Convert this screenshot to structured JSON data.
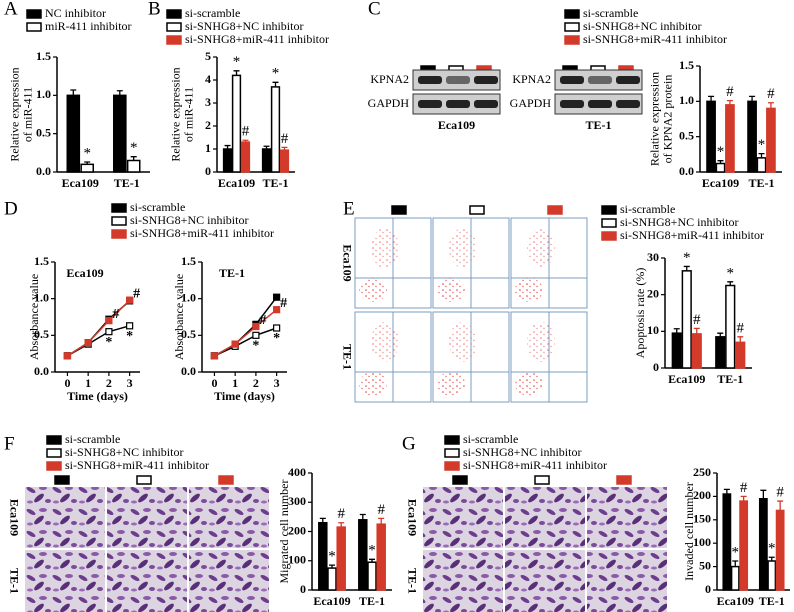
{
  "chart_data": [
    {
      "type": "bar",
      "panel": "A",
      "ylabel": [
        "Relative expression",
        "of miR-411"
      ],
      "categories": [
        "Eca109",
        "TE-1"
      ],
      "series": [
        {
          "name": "NC inhibitor",
          "color": "#000000",
          "values": [
            1.0,
            1.0
          ],
          "errors": [
            0.07,
            0.06
          ]
        },
        {
          "name": "miR-411 inhibitor",
          "color": "#ffffff",
          "values": [
            0.1,
            0.15
          ],
          "errors": [
            0.03,
            0.05
          ],
          "annotations": [
            "*",
            "*"
          ]
        }
      ],
      "ylim": [
        0,
        1.5
      ],
      "yticks": [
        {
          "value": 0,
          "label": "0.0"
        },
        0.5,
        {
          "value": 1,
          "label": "1.0"
        },
        1.5
      ]
    },
    {
      "type": "bar",
      "panel": "B",
      "ylabel": [
        "Relative expression",
        "of miR-411"
      ],
      "categories": [
        "Eca109",
        "TE-1"
      ],
      "series": [
        {
          "name": "si-scramble",
          "color": "#000000",
          "values": [
            1.0,
            1.0
          ],
          "errors": [
            0.15,
            0.12
          ]
        },
        {
          "name": "si-SNHG8+NC inhibitor",
          "color": "#ffffff",
          "values": [
            4.2,
            3.7
          ],
          "errors": [
            0.2,
            0.2
          ],
          "annotations": [
            "*",
            "*"
          ]
        },
        {
          "name": "si-SNHG8+miR-411 inhibitor",
          "color": "#d43a2a",
          "values": [
            1.3,
            0.95
          ],
          "errors": [
            0.08,
            0.12
          ],
          "annotations": [
            "#",
            "#"
          ]
        }
      ],
      "ylim": [
        0,
        5
      ],
      "yticks": [
        0,
        1,
        2,
        3,
        4,
        5
      ]
    },
    {
      "type": "bar",
      "panel": "C",
      "ylabel": [
        "Relative expression",
        "of KPNA2 protein"
      ],
      "categories": [
        "Eca109",
        "TE-1"
      ],
      "image_labels": {
        "rows": [
          "KPNA2",
          "GAPDH"
        ],
        "groups": [
          "Eca109",
          "TE-1"
        ]
      },
      "series": [
        {
          "name": "si-scramble",
          "color": "#000000",
          "values": [
            1.0,
            1.0
          ],
          "errors": [
            0.07,
            0.07
          ]
        },
        {
          "name": "si-SNHG8+NC inhibitor",
          "color": "#ffffff",
          "values": [
            0.12,
            0.2
          ],
          "errors": [
            0.04,
            0.06
          ],
          "annotations": [
            "*",
            "*"
          ]
        },
        {
          "name": "si-SNHG8+miR-411 inhibitor",
          "color": "#d43a2a",
          "values": [
            0.95,
            0.9
          ],
          "errors": [
            0.06,
            0.08
          ],
          "annotations": [
            "#",
            "#"
          ]
        }
      ],
      "ylim": [
        0,
        1.5
      ],
      "yticks": [
        {
          "value": 0,
          "label": "0.0"
        },
        0.5,
        {
          "value": 1,
          "label": "1.0"
        },
        1.5
      ]
    },
    {
      "type": "line",
      "panel": "D",
      "subtitle": "Eca109",
      "xlabel": "Time (days)",
      "ylabel": [
        "Absorbance value"
      ],
      "x": [
        0,
        1,
        2,
        3
      ],
      "xlim": [
        -0.6,
        3.5
      ],
      "xticks": [
        0,
        1,
        2,
        3
      ],
      "series": [
        {
          "name": "si-scramble",
          "color": "#000000",
          "marker_fill": "#000000",
          "values": [
            0.22,
            0.4,
            0.72,
            0.97
          ]
        },
        {
          "name": "si-SNHG8+NC inhibitor",
          "color": "#000000",
          "marker_fill": "#ffffff",
          "values": [
            0.22,
            0.38,
            0.55,
            0.63
          ],
          "annotations": [
            null,
            null,
            "*",
            "*"
          ]
        },
        {
          "name": "si-SNHG8+miR-411 inhibitor",
          "color": "#d43a2a",
          "marker_fill": "#d43a2a",
          "values": [
            0.22,
            0.4,
            0.7,
            0.98
          ],
          "annotations": [
            null,
            null,
            "#",
            "#"
          ]
        }
      ],
      "ylim": [
        0,
        1.5
      ],
      "yticks": [
        {
          "value": 0,
          "label": "0.0"
        },
        0.5,
        {
          "value": 1,
          "label": "1.0"
        },
        1.5
      ]
    },
    {
      "type": "line",
      "subtitle": "TE-1",
      "xlabel": "Time (days)",
      "ylabel": [
        "Absorbance value"
      ],
      "x": [
        0,
        1,
        2,
        3
      ],
      "xlim": [
        -0.6,
        3.5
      ],
      "xticks": [
        0,
        1,
        2,
        3
      ],
      "series": [
        {
          "color": "#000000",
          "marker_fill": "#000000",
          "values": [
            0.22,
            0.38,
            0.65,
            1.02
          ]
        },
        {
          "color": "#000000",
          "marker_fill": "#ffffff",
          "values": [
            0.22,
            0.35,
            0.5,
            0.6
          ],
          "annotations": [
            null,
            null,
            "*",
            "*"
          ]
        },
        {
          "color": "#d43a2a",
          "marker_fill": "#d43a2a",
          "values": [
            0.22,
            0.38,
            0.62,
            0.85
          ],
          "annotations": [
            null,
            null,
            "#",
            "#"
          ]
        }
      ],
      "ylim": [
        0,
        1.5
      ],
      "yticks": [
        {
          "value": 0,
          "label": "0.0"
        },
        0.5,
        {
          "value": 1,
          "label": "1.0"
        },
        1.5
      ]
    },
    {
      "type": "bar",
      "panel": "E",
      "ylabel": [
        "Apoptosis rate (%)"
      ],
      "categories": [
        "Eca109",
        "TE-1"
      ],
      "image_labels": {
        "rows": [
          "Eca109",
          "TE-1"
        ]
      },
      "series": [
        {
          "name": "si-scramble",
          "color": "#000000",
          "values": [
            9.5,
            8.5
          ],
          "errors": [
            1.2,
            1.0
          ]
        },
        {
          "name": "si-SNHG8+NC inhibitor",
          "color": "#ffffff",
          "values": [
            26.5,
            22.5
          ],
          "errors": [
            1.2,
            1.0
          ],
          "annotations": [
            "*",
            "*"
          ]
        },
        {
          "name": "si-SNHG8+miR-411 inhibitor",
          "color": "#d43a2a",
          "values": [
            9.3,
            7.0
          ],
          "errors": [
            1.5,
            1.5
          ],
          "annotations": [
            "#",
            "#"
          ]
        }
      ],
      "ylim": [
        0,
        30
      ],
      "yticks": [
        0,
        10,
        20,
        30
      ]
    },
    {
      "type": "bar",
      "panel": "F",
      "ylabel": [
        "Migrated cell number"
      ],
      "categories": [
        "Eca109",
        "TE-1"
      ],
      "image_labels": {
        "rows": [
          "Eca109",
          "TE-1"
        ]
      },
      "series": [
        {
          "name": "si-scramble",
          "color": "#000000",
          "values": [
            230,
            240
          ],
          "errors": [
            15,
            18
          ]
        },
        {
          "name": "si-SNHG8+NC inhibitor",
          "color": "#ffffff",
          "values": [
            75,
            95
          ],
          "errors": [
            10,
            10
          ],
          "annotations": [
            "*",
            "*"
          ]
        },
        {
          "name": "si-SNHG8+miR-411 inhibitor",
          "color": "#d43a2a",
          "values": [
            215,
            225
          ],
          "errors": [
            15,
            20
          ],
          "annotations": [
            "#",
            "#"
          ]
        }
      ],
      "ylim": [
        0,
        400
      ],
      "yticks": [
        0,
        100,
        200,
        300,
        400
      ]
    },
    {
      "type": "bar",
      "panel": "G",
      "ylabel": [
        "Invaded cell number"
      ],
      "categories": [
        "Eca109",
        "TE-1"
      ],
      "image_labels": {
        "rows": [
          "Eca109",
          "TE-1"
        ]
      },
      "series": [
        {
          "name": "si-scramble",
          "color": "#000000",
          "values": [
            205,
            195
          ],
          "errors": [
            10,
            18
          ]
        },
        {
          "name": "si-SNHG8+NC inhibitor",
          "color": "#ffffff",
          "values": [
            50,
            62
          ],
          "errors": [
            12,
            8
          ],
          "annotations": [
            "*",
            "*"
          ]
        },
        {
          "name": "si-SNHG8+miR-411 inhibitor",
          "color": "#d43a2a",
          "values": [
            190,
            170
          ],
          "errors": [
            10,
            20
          ],
          "annotations": [
            "#",
            "#"
          ]
        }
      ],
      "ylim": [
        0,
        250
      ],
      "yticks": [
        0,
        50,
        100,
        150,
        200,
        250
      ]
    }
  ]
}
